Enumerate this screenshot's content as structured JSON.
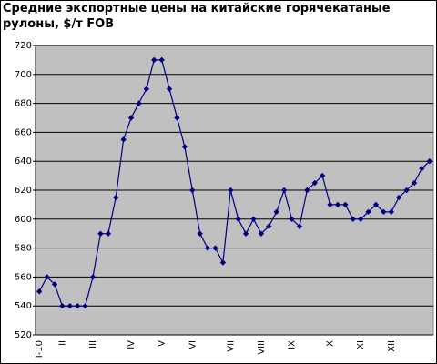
{
  "chart_data": {
    "type": "line",
    "title": "Средние экспортные цены на китайские горячекатаные рулоны, $/т FOB",
    "categories": [
      "I-10",
      null,
      null,
      "II",
      null,
      null,
      null,
      "III",
      null,
      null,
      null,
      null,
      "IV",
      null,
      null,
      null,
      "V",
      null,
      null,
      null,
      "VI",
      null,
      null,
      null,
      null,
      "VII",
      null,
      null,
      null,
      "VIII",
      null,
      null,
      null,
      "IX",
      null,
      null,
      null,
      null,
      "X",
      null,
      null,
      null,
      "XI",
      null,
      null,
      null,
      "XII",
      null,
      null,
      null,
      null,
      null
    ],
    "series": [
      {
        "color": "#000080",
        "values": [
          550,
          560,
          555,
          540,
          540,
          540,
          540,
          560,
          590,
          590,
          615,
          655,
          670,
          680,
          690,
          710,
          710,
          690,
          670,
          650,
          620,
          590,
          580,
          580,
          570,
          620,
          600,
          590,
          600,
          590,
          595,
          605,
          620,
          600,
          595,
          620,
          625,
          630,
          610,
          610,
          610,
          600,
          600,
          605,
          610,
          605,
          605,
          615,
          620,
          625,
          635,
          640
        ]
      }
    ],
    "ylim": [
      520,
      720
    ],
    "yticks": [
      520,
      540,
      560,
      580,
      600,
      620,
      640,
      660,
      680,
      700,
      720
    ],
    "grid": true
  }
}
